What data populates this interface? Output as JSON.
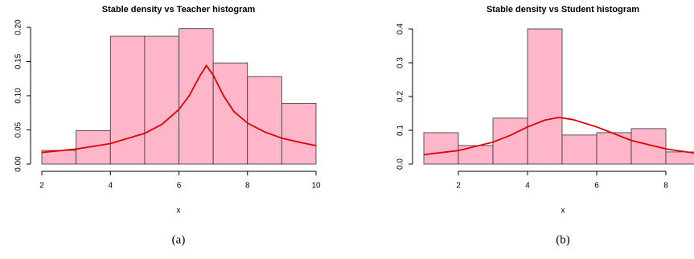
{
  "chart_data": [
    {
      "type": "histogram",
      "title": "Stable density vs Teacher histogram",
      "x_label": "x",
      "caption": "(a)",
      "bins": [
        2,
        3,
        4,
        5,
        6,
        7,
        8,
        9,
        10
      ],
      "values": [
        0.02,
        0.049,
        0.187,
        0.187,
        0.198,
        0.148,
        0.128,
        0.089
      ],
      "color": "#ffb6c8",
      "density": {
        "color": "#e00000",
        "x": [
          2,
          3,
          4,
          5,
          5.5,
          6,
          6.3,
          6.6,
          6.8,
          7,
          7.3,
          7.6,
          8,
          8.5,
          9,
          9.5,
          10
        ],
        "values": [
          0.017,
          0.022,
          0.03,
          0.045,
          0.058,
          0.08,
          0.1,
          0.128,
          0.144,
          0.13,
          0.1,
          0.077,
          0.06,
          0.047,
          0.038,
          0.032,
          0.027
        ]
      },
      "xlim": [
        2,
        10
      ],
      "xticks": [
        2,
        4,
        6,
        8,
        10
      ],
      "ylim": [
        0,
        0.2
      ],
      "yticks": [
        {
          "value": 0,
          "label": "0.00"
        },
        0.05,
        {
          "value": 0.1,
          "label": "0.10"
        },
        0.15,
        {
          "value": 0.2,
          "label": "0.20"
        }
      ]
    },
    {
      "type": "histogram",
      "title": "Stable density vs Student histogram",
      "x_label": "x",
      "caption": "(b)",
      "bins": [
        1,
        2,
        3,
        4,
        5,
        6,
        7,
        8,
        9
      ],
      "values": [
        0.093,
        0.055,
        0.136,
        0.4,
        0.086,
        0.093,
        0.105,
        0.036
      ],
      "color": "#ffb6c8",
      "density": {
        "color": "#e00000",
        "x": [
          1,
          2,
          3,
          3.5,
          4,
          4.5,
          4.9,
          5.3,
          6,
          6.5,
          7,
          8,
          9
        ],
        "values": [
          0.028,
          0.04,
          0.065,
          0.085,
          0.11,
          0.13,
          0.138,
          0.132,
          0.11,
          0.09,
          0.07,
          0.045,
          0.03
        ]
      },
      "xlim": [
        1,
        9
      ],
      "xticks": [
        2,
        4,
        6,
        8
      ],
      "ylim": [
        0,
        0.4
      ],
      "yticks": [
        {
          "value": 0,
          "label": "0.0"
        },
        0.1,
        0.2,
        0.3,
        0.4
      ]
    }
  ]
}
